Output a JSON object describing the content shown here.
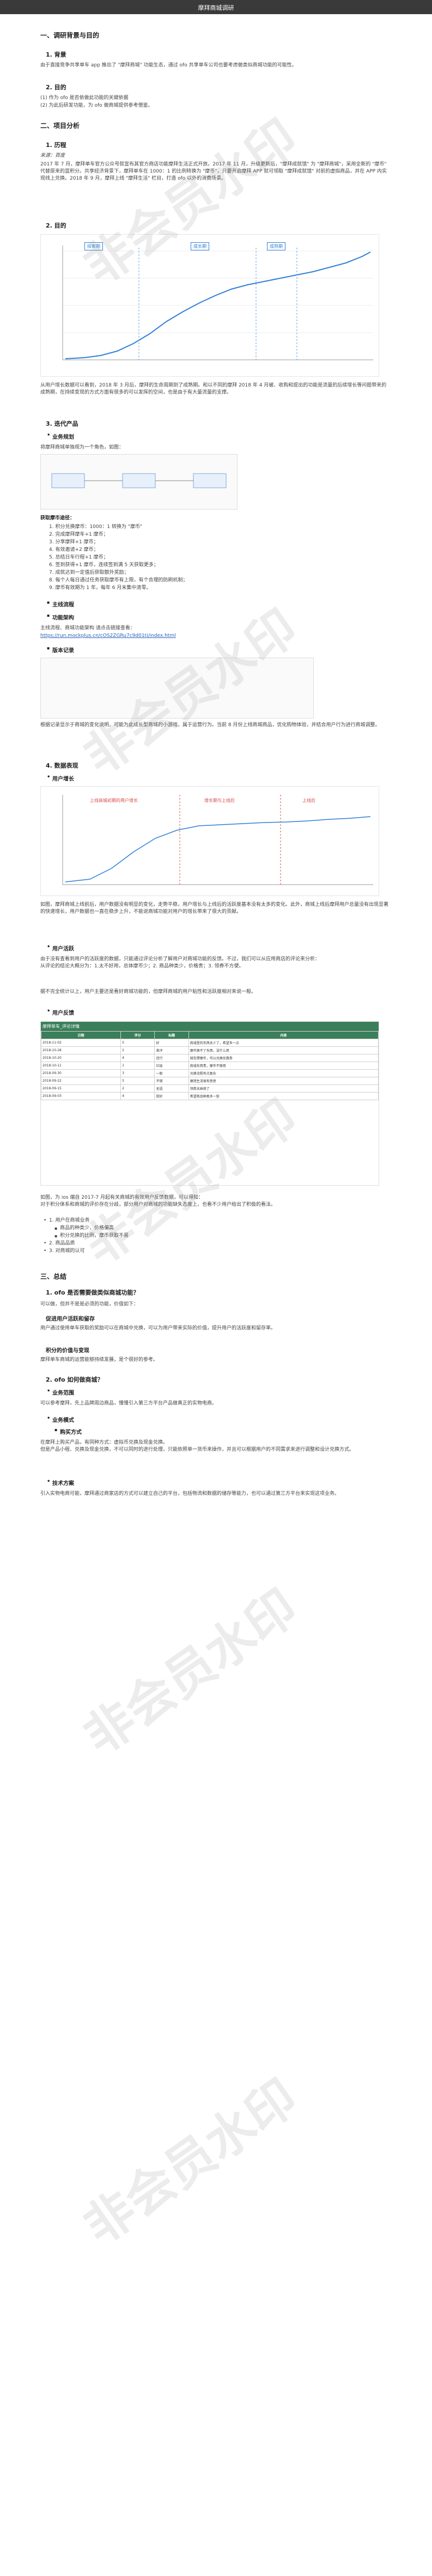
{
  "window": {
    "title": "摩拜商城调研"
  },
  "sections": {
    "s1": "一、调研背景与目的",
    "s1_1": "1. 背景",
    "s1_1_text": "由于直接竞争共享单车 app 推出了 \"摩拜商城\" 功能生态，通过 ofo 共享单车公司也要考虑做类似商城功能的可能性。",
    "s1_2": "2. 目的",
    "s1_2_a": "(1)  作为 ofo 是否依做此功能的关键依据",
    "s1_2_b": "(2)  为此后研发功能，为 ofo 做商城提供参考借鉴。",
    "s2": "二、项目分析",
    "s2_1": "1. 历程",
    "s2_1_sub": "来源：百度",
    "s2_1_text": "2017 年 7 月，摩拜单车官方公众号就宣布其官方商店功能摩拜生活正式开放。2017 年 11 月，升级更新后，\"摩拜成就馆\" 为 \"摩拜商城\"，采用全新的 \"摩币\" 代替原来的蓝积分。共享经济背景下，摩拜单车在 1000：1 的比例转换为 \"摩币\"，只要开启摩拜 APP 就可领取 \"摩拜成就馆\" 对前的虚拟商品，并在 APP 内实现线上兑换。2018 年 9 月，摩拜上线 \"摩拜生活\" 栏目，打造 ofo 以外的消费场景。",
    "s2_2": "2. 目的",
    "chart1": {
      "labels": [
        "探索期",
        "成长期",
        "成熟期"
      ]
    },
    "s2_2_text": "从用户增长数据可以看到，2018 年 3 月后，摩拜的生命周期到了成熟期。和以不同的摩拜 2018 年 4 月被、收购和提出的功能是流量的后续增长等问题带来的成熟期，在持续变现的方式方面有很多的可以发挥的空间，也是由于有大量流量的支撑。",
    "s3": "3. 迭代产品",
    "s3_1": "业务规划",
    "s3_1_text": "将摩拜商城单独视为一个角色，如图：",
    "s3_list_title": "获取摩币途径：",
    "s3_list": [
      "1. 积分兑换摩币：1000：1 转换为 \"摩币\"",
      "2. 完成摩拜摩车+1 摩币；",
      "3. 分享摩拜+1 摩币；",
      "4. 有效邀请+2 摩币；",
      "5. 总结日车行程+1 摩币；",
      "6. 签到获得+1 摩币，连续签到满 5 天获取更多；",
      "7. 成就达到一定值后获取额外奖励；",
      "8. 每个人每日通过任务获取摩币有上限，有个合理的防刷机制；",
      "9. 摩币有效期为 1 年，每年 6 月末集中清零。"
    ],
    "s3_2": "主线流程",
    "s3_3": "功能架构",
    "s3_3_text": "主线流程、商城功能架构 请点击链接查看：",
    "s3_3_link": "https://run.mockplus.cn/cOS2ZGRu7c9d01ti/index.html",
    "s3_4": "版本记录",
    "s3_4_text": "根据记录显示于商城的变化说明，可能为此成长型商城的小游戏，属于运营行为。当前 8 月份上线商城商品，优化购物体验，并结合用户行为进行商城调整。",
    "s4": "4. 数据表现",
    "s4_1": "用户增长",
    "chart2": {
      "labels": [
        "上线商城初期的用户增长",
        "增长期与上线后",
        "上线后"
      ]
    },
    "s4_1_text": "如图，摩拜商城上线前后，用户数据没有明显的变化，走势平稳，用户增长与上线后的活跃度基本没有太多的变化。此外，商城上线后摩拜用户总量没有出现显著的快速增长，用户数据也一直在稳步上升，不能说商城功能对用户的增长带来了很大的贡献。",
    "s4_2": "用户活跃",
    "s4_2_text": "由于没有查看到用户的活跃度的数据，只能通过评论分析了解用户对商城功能的反馈。不过，我们可以从应用商店的评论来分析：\n从评论的结论大概分为：1.太不好用，总体摩币少；2. 商品种类少，价格贵；3. 领券不方便。",
    "s4_2_text2": "据不完全统计以上，用户主要还是看好商城功能的，但摩拜商城的用户粘性和活跃度相对来说一般。",
    "s4_3": "用户反馈",
    "table_title": "摩拜单车_评论详情",
    "table_headers": [
      "日期",
      "评分",
      "标题",
      "内容"
    ],
    "table_rows": [
      [
        "2018-11-02",
        "5",
        "好",
        "商城里的东西太少了，希望多一点"
      ],
      [
        "2018-10-28",
        "2",
        "差评",
        "摩币换不了东西，没什么用"
      ],
      [
        "2018-10-20",
        "4",
        "还行",
        "骑车攒摩币，可以兑换优惠券"
      ],
      [
        "2018-10-11",
        "1",
        "垃圾",
        "商城东西贵，摩币不够用"
      ],
      [
        "2018-09-30",
        "3",
        "一般",
        "兑换流程有点复杂"
      ],
      [
        "2018-09-22",
        "5",
        "不错",
        "摩拜生活很有意思"
      ],
      [
        "2018-09-15",
        "2",
        "无语",
        "领券太麻烦了"
      ],
      [
        "2018-09-03",
        "4",
        "挺好",
        "希望商品种类多一些"
      ]
    ],
    "s4_3_text": "如图，为 ios 端自 2017-7 月起有关商城的有效用户反馈数据，可以得知：\n对于积分体系和商城的评价存在分歧，部分用户对商城的功能缺失态度上，也看不少用户给出了积极的看法。",
    "s4_3_list": [
      "1. 用户在商城业务",
      "商品的种类少，价格偏高",
      "积分兑换的比例，摩币获取不易",
      "2. 商品品质",
      "3. 对商城的认可"
    ],
    "s5": "三、总结",
    "s5_1": "1. ofo 是否需要做类似商城功能？",
    "s5_1_a": "可以做，但并不是是必须的功能，价值如下：",
    "s5_1_b": "促进用户活跃和留存",
    "s5_1_b_text": "用户通过使用单车获取的奖励可以在商城中兑换，可以为用户带来实际的价值，提升用户的活跃度和留存率。",
    "s5_1_c": "积分的价值与变现",
    "s5_1_c_text": "摩拜单车商城的运营能够持续发展，是个很好的参考。",
    "s5_2": "2. ofo 如何做商城？",
    "s5_2_1": "业务范围",
    "s5_2_1_text": "可以参考摩拜，先上品牌周边商品，慢慢引入第三方平台产品做真正的实物电商。",
    "s5_2_2": "业务模式",
    "s5_2_2_a": "购买方式",
    "s5_2_2_text": "在摩拜上购买产品，有同种方式：虚拟币兑换及现金兑换。\n但是产品小程、兑换及现金兑换，不可以同时的进行处理，只能依照单一货币来操作，并且可以根据用户的不同需求来进行调整和设计兑换方式。",
    "s5_2_3": "技术方案",
    "s5_2_3_text": "引入实物电商可能，摩拜通过商家店的方式可以建立自己的平台，包括物流和数据的储存等能力，也可以通过第三方平台来实现这项业务。"
  },
  "watermark": "非会员水印"
}
